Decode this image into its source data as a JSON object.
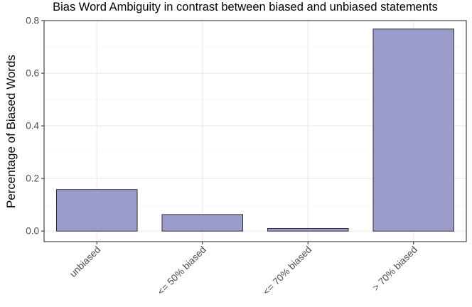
{
  "chart_data": {
    "type": "bar",
    "title": "Bias Word Ambiguity in contrast between biased and unbiased statements",
    "xlabel": "",
    "ylabel": "Percentage of Biased Words",
    "categories": [
      "unbiased",
      "<= 50% biased",
      "<= 70% biased",
      "> 70% biased"
    ],
    "values": [
      0.158,
      0.063,
      0.01,
      0.768
    ],
    "ylim": [
      -0.04,
      0.8
    ],
    "yticks": [
      0.0,
      0.2,
      0.4,
      0.6,
      0.8
    ],
    "ytick_labels": [
      "0.0",
      "0.2",
      "0.4",
      "0.6",
      "0.8"
    ],
    "grid": true,
    "bar_color": "#9b9bcc"
  }
}
